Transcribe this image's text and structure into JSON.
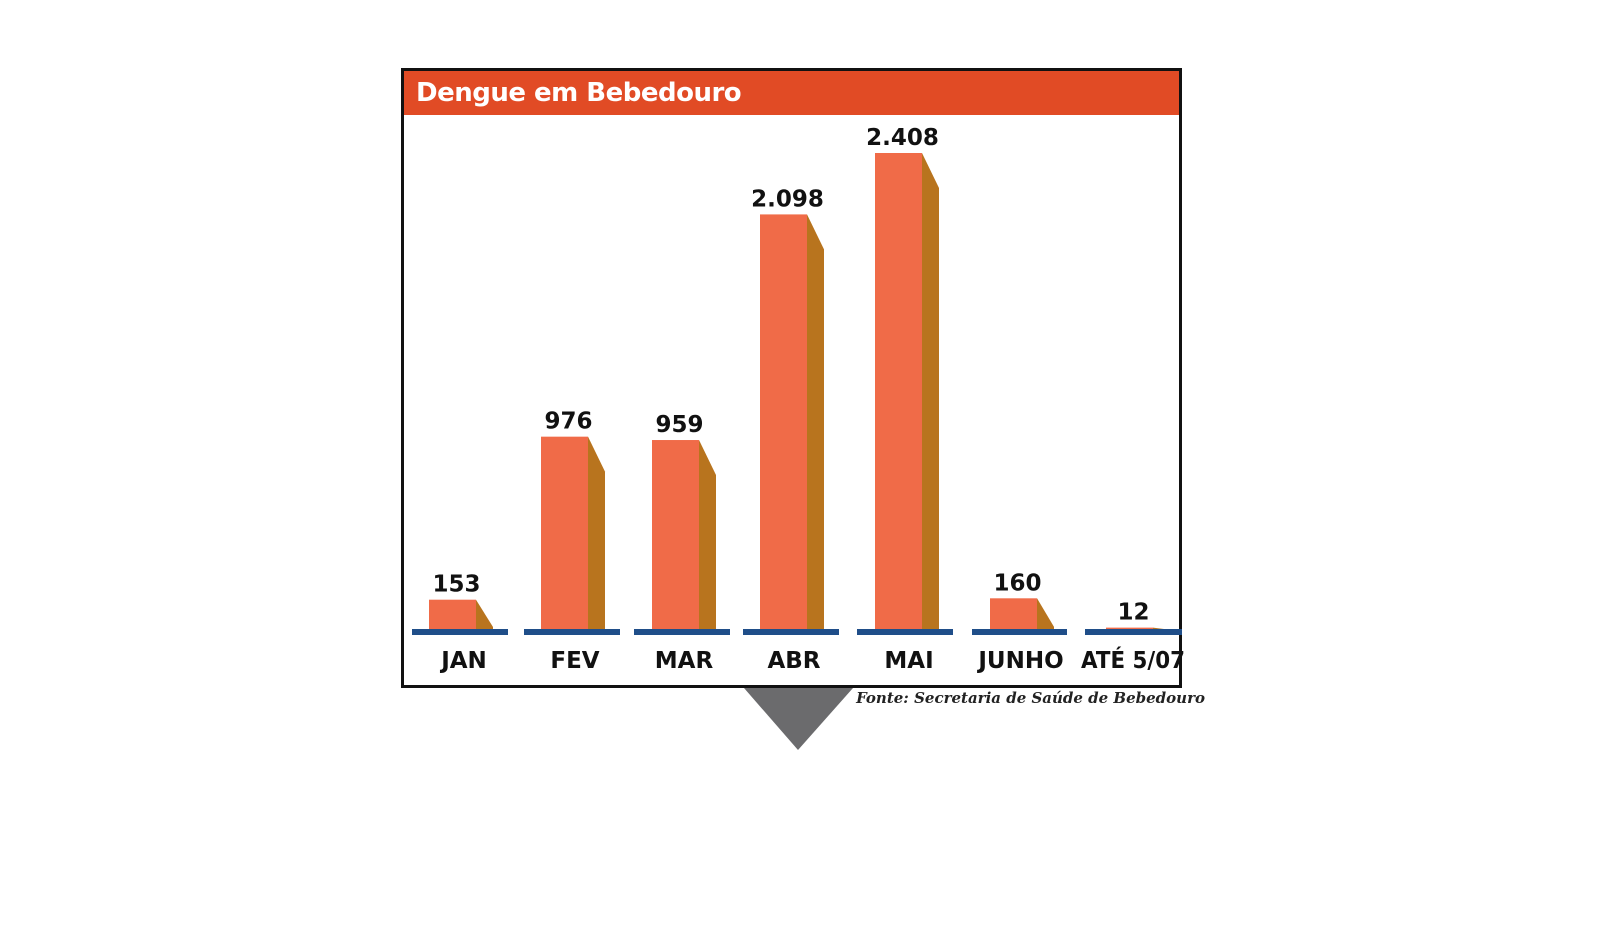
{
  "chart_data": {
    "type": "bar",
    "title": "Dengue em Bebedouro",
    "categories": [
      "JAN",
      "FEV",
      "MAR",
      "ABR",
      "MAI",
      "JUNHO",
      "ATÉ 5/07"
    ],
    "values": [
      153,
      976,
      959,
      2098,
      2408,
      160,
      12
    ],
    "value_labels": [
      "153",
      "976",
      "959",
      "2.098",
      "2.408",
      "160",
      "12"
    ],
    "xlabel": "",
    "ylabel": "",
    "ylim": [
      0,
      2408
    ],
    "grid": false,
    "legend": "none",
    "source": "Fonte: Secretaria de Saúde de Bebedouro"
  },
  "colors": {
    "header": "#e14b25",
    "bar_front": "#f06b48",
    "bar_side": "#b8741e",
    "baseline": "#1f4e89",
    "pointer": "#6b6b6d"
  }
}
